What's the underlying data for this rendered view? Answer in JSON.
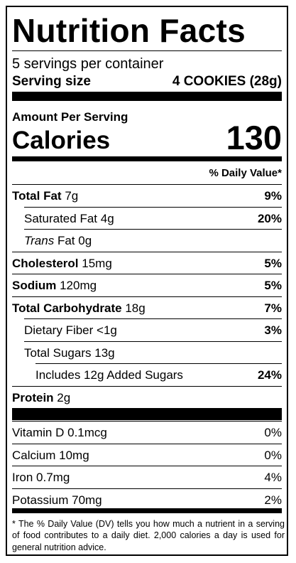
{
  "header": {
    "title": "Nutrition Facts",
    "servings": "5 servings per container",
    "serving_size_label": "Serving size",
    "serving_size": "4 COOKIES (28g)"
  },
  "calories": {
    "heading": "Amount Per Serving",
    "label": "Calories",
    "value": "130",
    "daily_value_heading": "% Daily Value*"
  },
  "nutrients": [
    {
      "name": "Total Fat",
      "amount": "7g",
      "dv": "9%",
      "bold": true,
      "indent": 0
    },
    {
      "name": "Saturated Fat",
      "amount": "4g",
      "dv": "20%",
      "bold": false,
      "indent": 1
    },
    {
      "italic": "Trans",
      "name": "Fat",
      "amount": "0g",
      "bold": false,
      "indent": 1
    },
    {
      "name": "Cholesterol",
      "amount": "15mg",
      "dv": "5%",
      "bold": true,
      "indent": 0
    },
    {
      "name": "Sodium",
      "amount": "120mg",
      "dv": "5%",
      "bold": true,
      "indent": 0
    },
    {
      "name": "Total Carbohydrate",
      "amount": "18g",
      "dv": "7%",
      "bold": true,
      "indent": 0
    },
    {
      "name": "Dietary Fiber",
      "amount": "<1g",
      "dv": "3%",
      "bold": false,
      "indent": 1
    },
    {
      "name": "Total Sugars",
      "amount": "13g",
      "bold": false,
      "indent": 1
    },
    {
      "name": "Includes 12g Added Sugars",
      "dv": "24%",
      "bold": false,
      "indent": 2
    },
    {
      "name": "Protein",
      "amount": "2g",
      "bold": true,
      "indent": 0
    }
  ],
  "vitamins": [
    {
      "name": "Vitamin D",
      "amount": "0.1mcg",
      "dv": "0%"
    },
    {
      "name": "Calcium",
      "amount": "10mg",
      "dv": "0%"
    },
    {
      "name": "Iron",
      "amount": "0.7mg",
      "dv": "4%"
    },
    {
      "name": "Potassium",
      "amount": "70mg",
      "dv": "2%"
    }
  ],
  "footnote": "* The % Daily Value (DV) tells you how much a nutrient in a serving of food contributes to a daily diet. 2,000 calories a day is used for general nutrition advice."
}
